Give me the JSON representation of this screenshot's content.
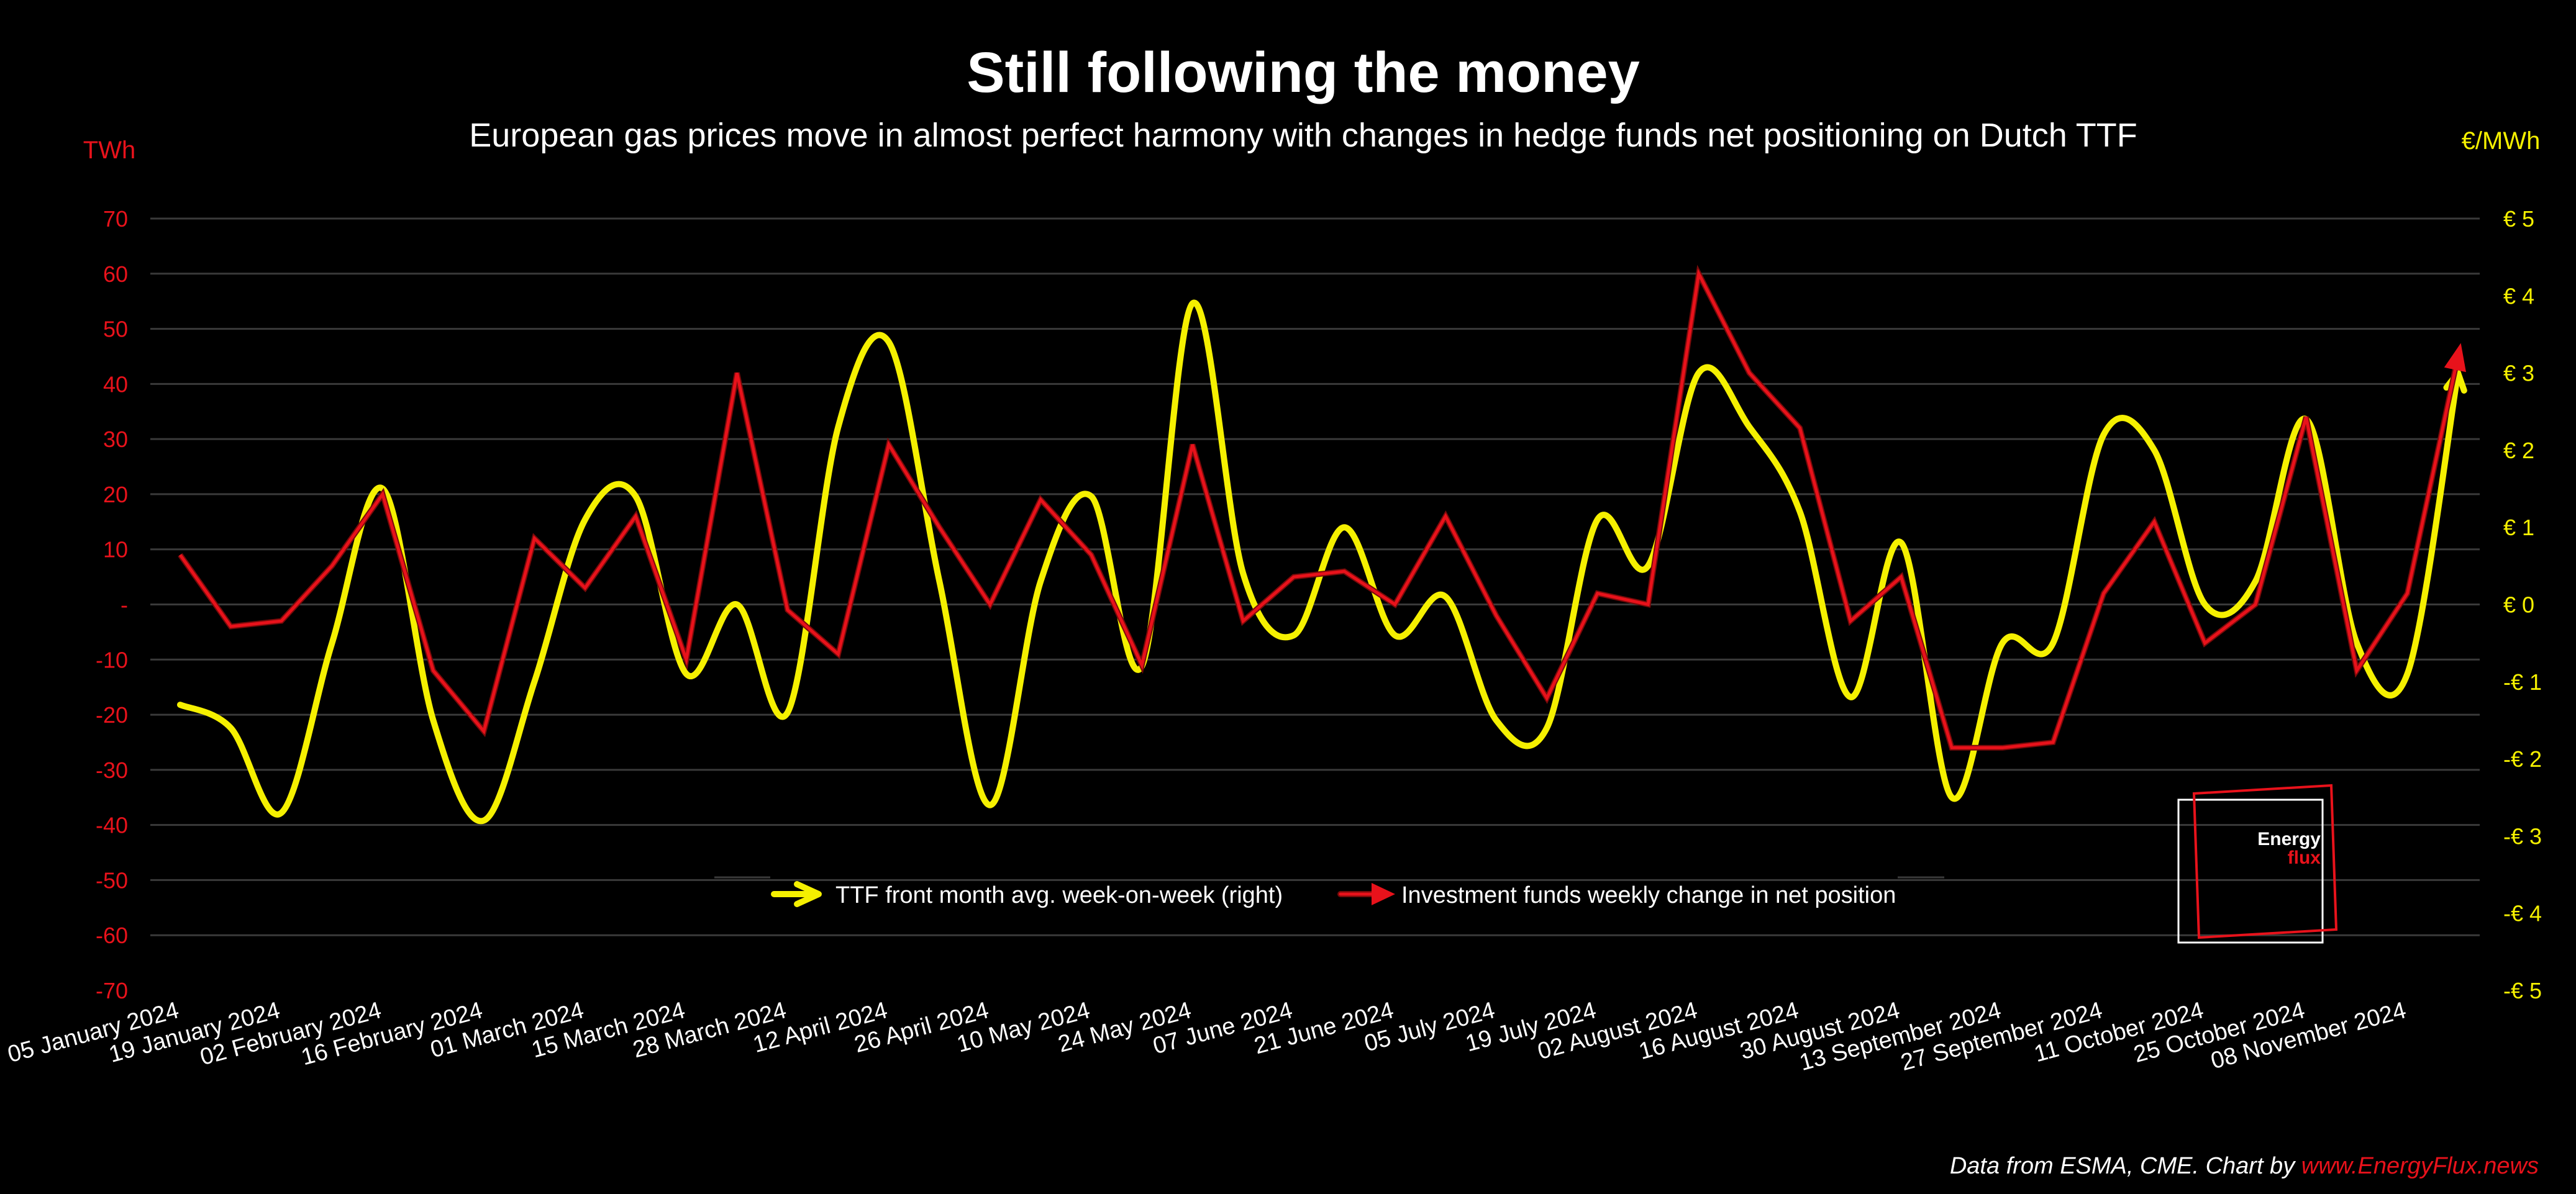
{
  "title": "Still following the money",
  "subtitle": "European gas prices move in almost perfect harmony with changes in hedge funds net positioning on Dutch TTF",
  "source_prefix": "Data from ESMA, CME. Chart by ",
  "source_link": "www.EnergyFlux.news",
  "logo": {
    "line1": "Energy",
    "line2": "flux"
  },
  "colors": {
    "background": "#000000",
    "ttf": "#f5f000",
    "funds": "#e8121b",
    "funds_edge": "#7a0a0a",
    "grid": "#3a3a3a",
    "text": "#ffffff"
  },
  "chart_data": {
    "type": "line",
    "x_tick_labels": [
      "05 January 2024",
      "19 January 2024",
      "02 February 2024",
      "16 February 2024",
      "01 March 2024",
      "15 March 2024",
      "28 March 2024",
      "12 April 2024",
      "26 April 2024",
      "10 May 2024",
      "24 May 2024",
      "07 June 2024",
      "21 June 2024",
      "05 July 2024",
      "19 July 2024",
      "02 August 2024",
      "16 August 2024",
      "30 August 2024",
      "13 September 2024",
      "27 September 2024",
      "11 October 2024",
      "25 October 2024",
      "08 November 2024"
    ],
    "y_left": {
      "unit": "TWh",
      "min": -70,
      "max": 70,
      "tick_labels": [
        "70",
        "60",
        "50",
        "40",
        "30",
        "20",
        "10",
        "-",
        "-10",
        "-20",
        "-30",
        "-40",
        "-50",
        "-60",
        "-70"
      ]
    },
    "y_right": {
      "unit": "€/MWh",
      "min": -5,
      "max": 5,
      "tick_labels": [
        "€ 5",
        "€ 4",
        "€ 3",
        "€ 2",
        "€ 1",
        "€ 0",
        "-€ 1",
        "-€ 2",
        "-€ 3",
        "-€ 4",
        "-€ 5"
      ]
    },
    "grid": true,
    "legend_position": "bottom-center",
    "series": [
      {
        "name": "TTF front month avg. week-on-week (right)",
        "axis": "right",
        "smooth": true,
        "values": [
          -1.3,
          -1.6,
          -2.7,
          -0.5,
          1.5,
          -1.5,
          -2.8,
          -1.0,
          1.1,
          1.4,
          -0.9,
          0.0,
          -1.4,
          2.3,
          3.4,
          0.3,
          -2.6,
          0.3,
          1.4,
          -0.8,
          3.9,
          0.4,
          -0.4,
          1.0,
          -0.4,
          0.1,
          -1.5,
          -1.6,
          1.1,
          0.5,
          3.0,
          2.3,
          1.2,
          -1.2,
          0.8,
          -2.5,
          -0.5,
          -0.5,
          2.2,
          2.0,
          0.0,
          0.3,
          2.4,
          -0.5,
          -0.9,
          3.0
        ]
      },
      {
        "name": "Investment funds weekly change in net position",
        "axis": "left",
        "smooth": false,
        "values": [
          9,
          -4,
          -3,
          7,
          20,
          -12,
          -23,
          12,
          3,
          16,
          -10,
          42,
          -1,
          -9,
          29,
          14,
          0,
          19,
          9,
          -11,
          29,
          -3,
          5,
          6,
          0,
          16,
          -2,
          -17,
          2,
          0,
          60,
          42,
          32,
          -3,
          5,
          -26,
          -26,
          -25,
          2,
          15,
          -7,
          0,
          34,
          -12,
          2,
          45
        ]
      }
    ]
  }
}
